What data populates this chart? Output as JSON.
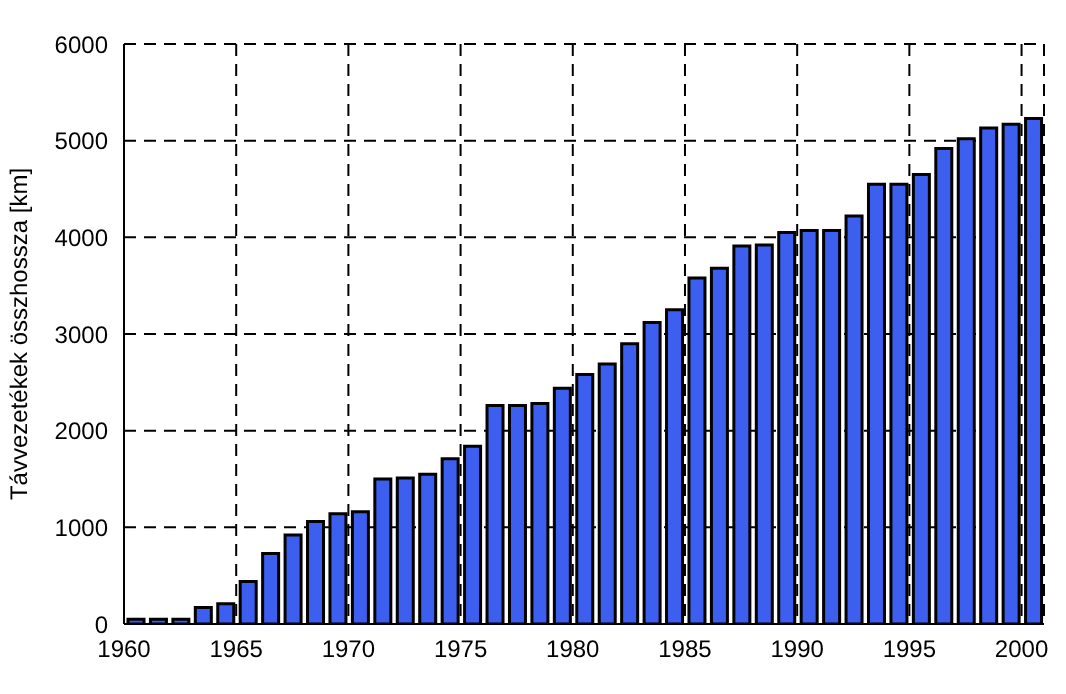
{
  "chart_data": {
    "type": "bar",
    "ylabel": "Távvezetékek összhossza [km]",
    "x": [
      1960.5,
      1961.5,
      1962.5,
      1963.5,
      1964.5,
      1965.5,
      1966.5,
      1967.5,
      1968.5,
      1969.5,
      1970.5,
      1971.5,
      1972.5,
      1973.5,
      1974.5,
      1975.5,
      1976.5,
      1977.5,
      1978.5,
      1979.5,
      1980.5,
      1981.5,
      1982.5,
      1983.5,
      1984.5,
      1985.5,
      1986.5,
      1987.5,
      1988.5,
      1989.5,
      1990.5,
      1991.5,
      1992.5,
      1993.5,
      1994.5,
      1995.5,
      1996.5,
      1997.5,
      1998.5,
      1999.5,
      2000.5
    ],
    "values": [
      50,
      50,
      50,
      170,
      210,
      440,
      730,
      920,
      1060,
      1140,
      1160,
      1500,
      1510,
      1550,
      1710,
      1840,
      2260,
      2260,
      2280,
      2440,
      2580,
      2690,
      2900,
      3120,
      3250,
      3580,
      3680,
      3910,
      3920,
      4050,
      4070,
      4070,
      4220,
      4550,
      4550,
      4650,
      4920,
      5020,
      5130,
      5170,
      5230
    ],
    "color": "#3c5ff0",
    "xlim": [
      1960,
      2001
    ],
    "xticks": [
      1960,
      1965,
      1970,
      1975,
      1980,
      1985,
      1990,
      1995,
      2000
    ],
    "ylim": [
      0,
      6000
    ],
    "yticks": [
      0,
      1000,
      2000,
      3000,
      4000,
      5000,
      6000
    ],
    "grid": true
  }
}
